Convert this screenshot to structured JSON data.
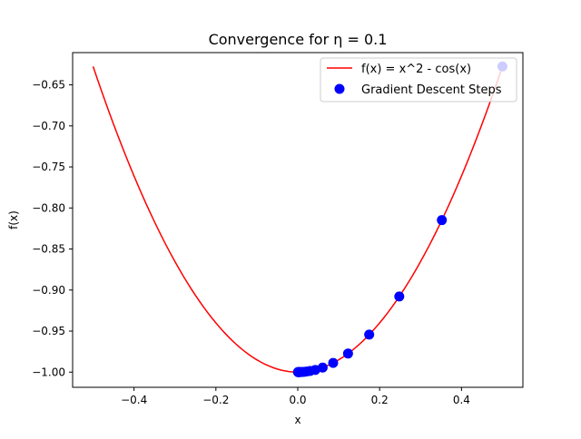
{
  "chart_data": {
    "type": "line",
    "title": "Convergence for η = 0.1",
    "xlabel": "x",
    "ylabel": "f(x)",
    "xlim": [
      -0.55,
      0.55
    ],
    "ylim": [
      -1.0185,
      -0.6107
    ],
    "x_ticks": [
      {
        "value": -0.4,
        "label": "−0.4"
      },
      {
        "value": -0.2,
        "label": "−0.2"
      },
      {
        "value": 0.0,
        "label": "0.0"
      },
      {
        "value": 0.2,
        "label": "0.2"
      },
      {
        "value": 0.4,
        "label": "0.4"
      }
    ],
    "y_ticks": [
      {
        "value": -1.0,
        "label": "−1.00"
      },
      {
        "value": -0.95,
        "label": "−0.95"
      },
      {
        "value": -0.9,
        "label": "−0.90"
      },
      {
        "value": -0.85,
        "label": "−0.85"
      },
      {
        "value": -0.8,
        "label": "−0.80"
      },
      {
        "value": -0.75,
        "label": "−0.75"
      },
      {
        "value": -0.7,
        "label": "−0.70"
      },
      {
        "value": -0.65,
        "label": "−0.65"
      }
    ],
    "grid": false,
    "legend_position": "top-right",
    "series": [
      {
        "name": "f(x) = x^2 - cos(x)",
        "kind": "line",
        "color": "#ff0000",
        "function": "x^2 - cos(x)",
        "x_range": [
          -0.5,
          0.5
        ],
        "samples": 101
      },
      {
        "name": "Gradient Descent Steps",
        "kind": "scatter",
        "color": "#0000ff",
        "points": [
          {
            "x": 0.5,
            "y": -0.6276
          },
          {
            "x": 0.352,
            "y": -0.8148
          },
          {
            "x": 0.248,
            "y": -0.9079
          },
          {
            "x": 0.1745,
            "y": -0.9543
          },
          {
            "x": 0.1228,
            "y": -0.9774
          },
          {
            "x": 0.0865,
            "y": -0.9888
          },
          {
            "x": 0.0608,
            "y": -0.9945
          },
          {
            "x": 0.0428,
            "y": -0.9973
          },
          {
            "x": 0.0301,
            "y": -0.9986
          },
          {
            "x": 0.0212,
            "y": -0.9993
          },
          {
            "x": 0.0149,
            "y": -0.9997
          },
          {
            "x": 0.0105,
            "y": -0.9998
          },
          {
            "x": 0.0074,
            "y": -0.9999
          },
          {
            "x": 0.0052,
            "y": -1.0
          },
          {
            "x": 0.0037,
            "y": -1.0
          },
          {
            "x": 0.0026,
            "y": -1.0
          },
          {
            "x": 0.0018,
            "y": -1.0
          },
          {
            "x": 0.0013,
            "y": -1.0
          },
          {
            "x": 0.0009,
            "y": -1.0
          },
          {
            "x": 0.0006,
            "y": -1.0
          }
        ]
      }
    ]
  }
}
